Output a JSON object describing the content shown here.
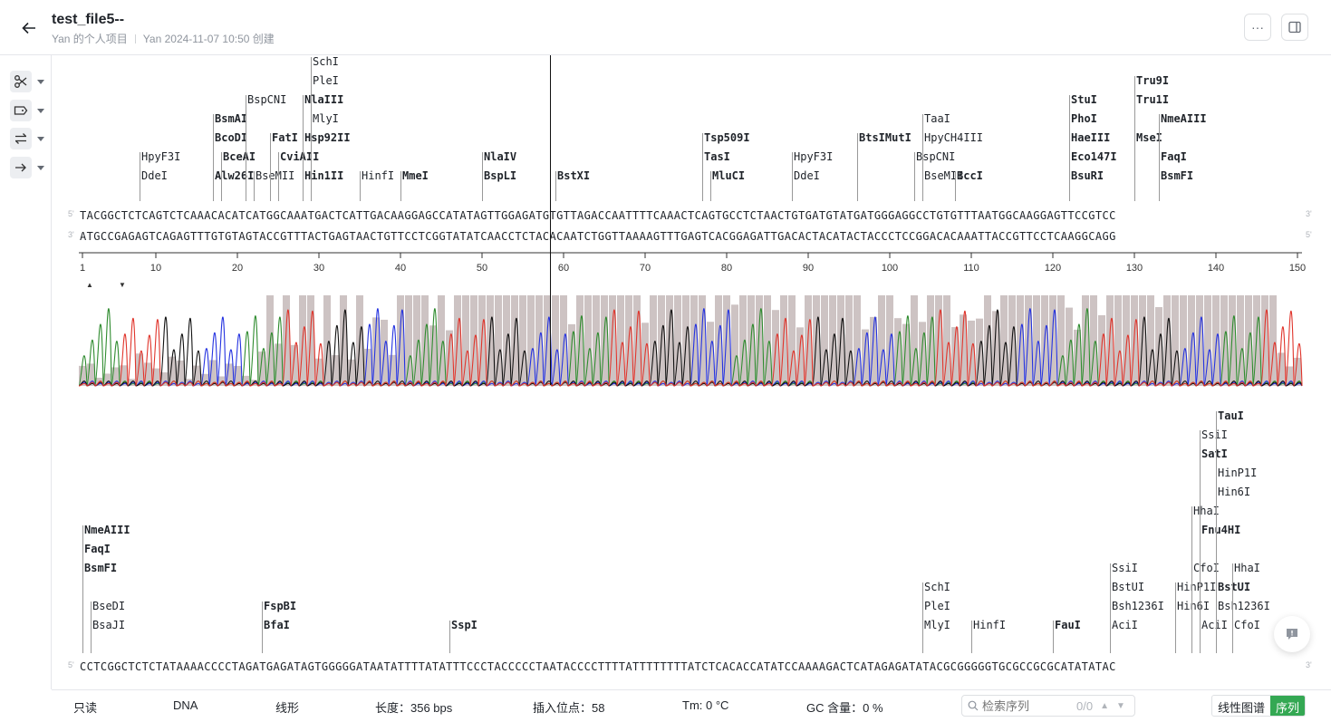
{
  "header": {
    "title": "test_file5--",
    "owner": "Yan 的个人项目",
    "meta": "Yan 2024-11-07 10:50 创建",
    "more_label": "···"
  },
  "toolbar": [
    {
      "name": "scissors-icon"
    },
    {
      "name": "tag-icon"
    },
    {
      "name": "swap-icon"
    },
    {
      "name": "arrow-right-icon"
    }
  ],
  "track1": {
    "top_strand": "TACGGCTCTCAGTCTCAAACACATCATGGCAAATGACTCATTGACAAGGAGCCATATAGTTGGAGATGTGTTAGACCAATTTTCAAACTCAGTGCCTCTAACTGTGATGTATGATGGGAGGCCTGTGTTTAATGGCAAGGAGTTCCGTCC",
    "bottom_strand": "ATGCCGAGAGTCAGAGTTTGTGTAGTACCGTTTACTGAGTAACTGTTCCTCGGTATATCAACCTCTACACAATCTGGTTAAAAGTTTGAGTCACGGAGATTGACACTACATACTACCCTCCGGACACAAATTACCGTTCCTCAAGGCAGG",
    "five": "5'",
    "three": "3'",
    "ruler_ticks": [
      "1",
      "10",
      "20",
      "30",
      "40",
      "50",
      "60",
      "70",
      "80",
      "90",
      "100",
      "110",
      "120",
      "130",
      "140",
      "150"
    ],
    "enzymes": [
      {
        "label": "HpyF3I",
        "bold": false,
        "pos": 8,
        "row": 1
      },
      {
        "label": "DdeI",
        "bold": false,
        "pos": 8,
        "row": 0
      },
      {
        "label": "BsmAI",
        "bold": true,
        "pos": 17,
        "row": 3
      },
      {
        "label": "BcoDI",
        "bold": true,
        "pos": 17,
        "row": 2
      },
      {
        "label": "Alw26I",
        "bold": true,
        "pos": 17,
        "row": 0
      },
      {
        "label": "BceAI",
        "bold": true,
        "pos": 18,
        "row": 1
      },
      {
        "label": "BspCNI",
        "bold": false,
        "pos": 21,
        "row": 4
      },
      {
        "label": "BseMII",
        "bold": false,
        "pos": 22,
        "row": 0
      },
      {
        "label": "FatI",
        "bold": true,
        "pos": 24,
        "row": 2
      },
      {
        "label": "CviAII",
        "bold": true,
        "pos": 25,
        "row": 1
      },
      {
        "label": "SchI",
        "bold": false,
        "pos": 29,
        "row": 6
      },
      {
        "label": "PleI",
        "bold": false,
        "pos": 29,
        "row": 5
      },
      {
        "label": "NlaIII",
        "bold": true,
        "pos": 28,
        "row": 4
      },
      {
        "label": "MlyI",
        "bold": false,
        "pos": 29,
        "row": 3
      },
      {
        "label": "Hsp92II",
        "bold": true,
        "pos": 28,
        "row": 2
      },
      {
        "label": "Hin1II",
        "bold": true,
        "pos": 28,
        "row": 0
      },
      {
        "label": "HinfI",
        "bold": false,
        "pos": 35,
        "row": 0
      },
      {
        "label": "MmeI",
        "bold": true,
        "pos": 40,
        "row": 0
      },
      {
        "label": "NlaIV",
        "bold": true,
        "pos": 50,
        "row": 1
      },
      {
        "label": "BspLI",
        "bold": true,
        "pos": 50,
        "row": 0
      },
      {
        "label": "BstXI",
        "bold": true,
        "pos": 59,
        "row": 0
      },
      {
        "label": "Tsp509I",
        "bold": true,
        "pos": 77,
        "row": 2
      },
      {
        "label": "TasI",
        "bold": true,
        "pos": 77,
        "row": 1
      },
      {
        "label": "MluCI",
        "bold": true,
        "pos": 78,
        "row": 0
      },
      {
        "label": "HpyF3I",
        "bold": false,
        "pos": 88,
        "row": 1
      },
      {
        "label": "DdeI",
        "bold": false,
        "pos": 88,
        "row": 0
      },
      {
        "label": "BtsIMutI",
        "bold": true,
        "pos": 96,
        "row": 2
      },
      {
        "label": "TaaI",
        "bold": false,
        "pos": 104,
        "row": 3
      },
      {
        "label": "HpyCH4III",
        "bold": false,
        "pos": 104,
        "row": 2
      },
      {
        "label": "BspCNI",
        "bold": false,
        "pos": 103,
        "row": 1
      },
      {
        "label": "BseMII",
        "bold": false,
        "pos": 104,
        "row": 0
      },
      {
        "label": "BccI",
        "bold": true,
        "pos": 108,
        "row": 0
      },
      {
        "label": "StuI",
        "bold": true,
        "pos": 122,
        "row": 4
      },
      {
        "label": "PhoI",
        "bold": true,
        "pos": 122,
        "row": 3
      },
      {
        "label": "HaeIII",
        "bold": true,
        "pos": 122,
        "row": 2
      },
      {
        "label": "Eco147I",
        "bold": true,
        "pos": 122,
        "row": 1
      },
      {
        "label": "BsuRI",
        "bold": true,
        "pos": 122,
        "row": 0
      },
      {
        "label": "Tru9I",
        "bold": true,
        "pos": 130,
        "row": 5
      },
      {
        "label": "Tru1I",
        "bold": true,
        "pos": 130,
        "row": 4
      },
      {
        "label": "MseI",
        "bold": true,
        "pos": 130,
        "row": 2
      },
      {
        "label": "NmeAIII",
        "bold": true,
        "pos": 133,
        "row": 3
      },
      {
        "label": "FaqI",
        "bold": true,
        "pos": 133,
        "row": 1
      },
      {
        "label": "BsmFI",
        "bold": true,
        "pos": 133,
        "row": 0
      }
    ]
  },
  "track2": {
    "top_strand": "CCTCGGCTCTCTATAAAACCCCTAGATGAGATAGTGGGGGATAATATTTTATATTTCCCTACCCCCTAATACCCCTTTTATTTTTTTTATCTCACACCATATCCAAAAGACTCATAGAGATATACGCGGGGGTGCGCCGCGCATATATAC",
    "five": "5'",
    "three": "3'",
    "enzymes": [
      {
        "label": "NmeAIII",
        "bold": true,
        "pos": 1,
        "row": 5
      },
      {
        "label": "FaqI",
        "bold": true,
        "pos": 1,
        "row": 4
      },
      {
        "label": "BsmFI",
        "bold": true,
        "pos": 1,
        "row": 3
      },
      {
        "label": "BseDI",
        "bold": false,
        "pos": 2,
        "row": 1
      },
      {
        "label": "BsaJI",
        "bold": false,
        "pos": 2,
        "row": 0
      },
      {
        "label": "FspBI",
        "bold": true,
        "pos": 23,
        "row": 1
      },
      {
        "label": "BfaI",
        "bold": true,
        "pos": 23,
        "row": 0
      },
      {
        "label": "SspI",
        "bold": true,
        "pos": 46,
        "row": 0
      },
      {
        "label": "SchI",
        "bold": false,
        "pos": 104,
        "row": 2
      },
      {
        "label": "PleI",
        "bold": false,
        "pos": 104,
        "row": 1
      },
      {
        "label": "MlyI",
        "bold": false,
        "pos": 104,
        "row": 0
      },
      {
        "label": "HinfI",
        "bold": false,
        "pos": 110,
        "row": 0
      },
      {
        "label": "FauI",
        "bold": true,
        "pos": 120,
        "row": 0
      },
      {
        "label": "SsiI",
        "bold": false,
        "pos": 127,
        "row": 3
      },
      {
        "label": "BstUI",
        "bold": false,
        "pos": 127,
        "row": 2
      },
      {
        "label": "Bsh1236I",
        "bold": false,
        "pos": 127,
        "row": 1
      },
      {
        "label": "AciI",
        "bold": false,
        "pos": 127,
        "row": 0
      },
      {
        "label": "HinP1I",
        "bold": false,
        "pos": 135,
        "row": 2
      },
      {
        "label": "Hin6I",
        "bold": false,
        "pos": 135,
        "row": 1
      },
      {
        "label": "HhaI",
        "bold": false,
        "pos": 137,
        "row": 6
      },
      {
        "label": "CfoI",
        "bold": false,
        "pos": 137,
        "row": 3
      },
      {
        "label": "SsiI",
        "bold": false,
        "pos": 138,
        "row": 10
      },
      {
        "label": "SatI",
        "bold": true,
        "pos": 138,
        "row": 9
      },
      {
        "label": "Fnu4HI",
        "bold": true,
        "pos": 138,
        "row": 5
      },
      {
        "label": "AciI",
        "bold": false,
        "pos": 138,
        "row": 0
      },
      {
        "label": "TauI",
        "bold": true,
        "pos": 140,
        "row": 11
      },
      {
        "label": "HinP1I",
        "bold": false,
        "pos": 140,
        "row": 8
      },
      {
        "label": "Hin6I",
        "bold": false,
        "pos": 140,
        "row": 7
      },
      {
        "label": "BstUI",
        "bold": true,
        "pos": 140,
        "row": 2
      },
      {
        "label": "Bsh1236I",
        "bold": false,
        "pos": 140,
        "row": 1
      },
      {
        "label": "HhaI",
        "bold": false,
        "pos": 142,
        "row": 3
      },
      {
        "label": "CfoI",
        "bold": false,
        "pos": 142,
        "row": 0
      }
    ]
  },
  "footer": {
    "readonly": "只读",
    "type": "DNA",
    "topology": "线形",
    "length": "长度：356 bps",
    "insert": "插入位点：58",
    "tm": "Tm: 0 °C",
    "gc": "GC 含量：0 %",
    "search_placeholder": "检索序列",
    "search_count": "0/0",
    "linear_map_label": "线性图谱",
    "sequence_label": "序列"
  },
  "colors": {
    "accent": "#34a853",
    "trace_a": "#2e8b2e",
    "trace_c": "#2432e0",
    "trace_g": "#111111",
    "trace_t": "#e0342b",
    "quality": "#cdc3c3"
  }
}
